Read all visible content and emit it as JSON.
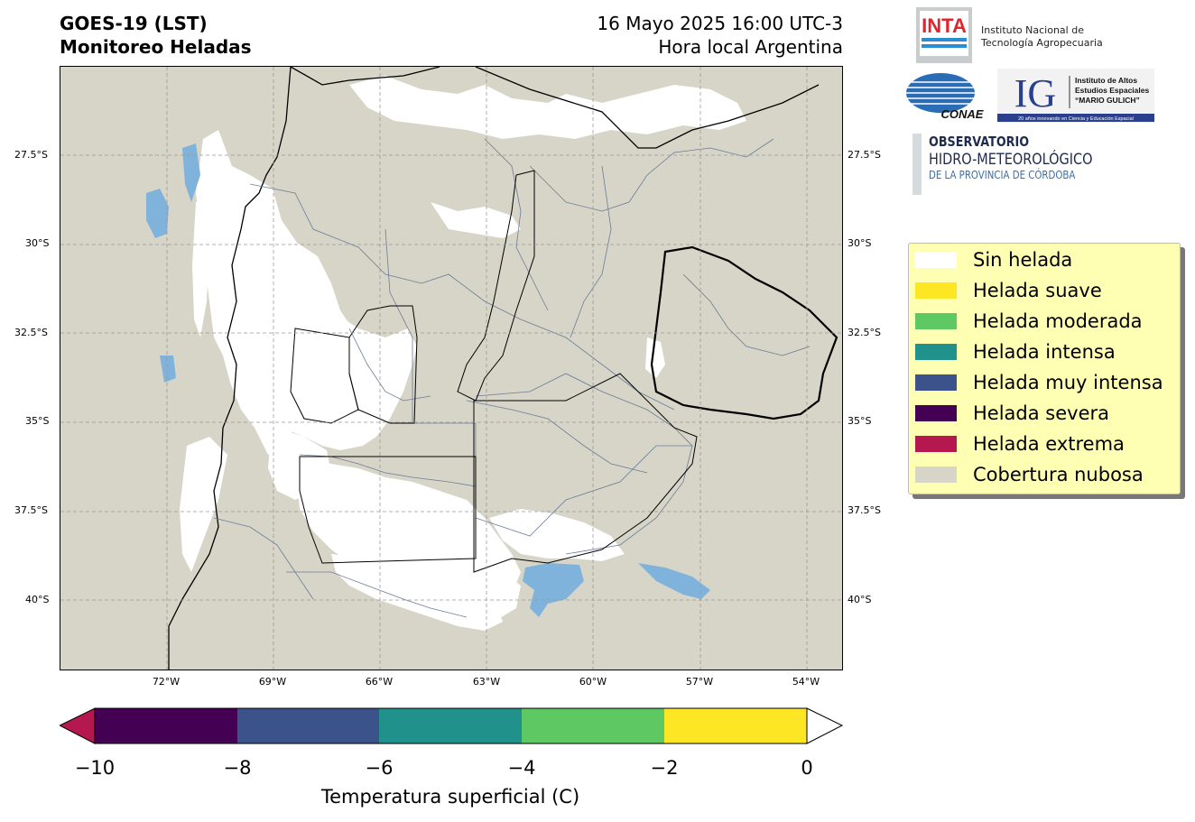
{
  "header": {
    "title_line1": "GOES-19 (LST)",
    "title_line2": "Monitoreo Heladas",
    "date_line1": "16 Mayo 2025 16:00 UTC-3",
    "date_line2": "Hora local Argentina"
  },
  "map": {
    "lat_labels": [
      "27.5°S",
      "30°S",
      "32.5°S",
      "35°S",
      "37.5°S",
      "40°S"
    ],
    "lon_labels": [
      "72°W",
      "69°W",
      "66°W",
      "63°W",
      "60°W",
      "57°W",
      "54°W"
    ],
    "cloud_color": "#d6d5c7",
    "clear_color": "#ffffff",
    "water_color": "#7fb3dc"
  },
  "logos": {
    "inta_mark": "INTA",
    "inta_line1": "Instituto Nacional de",
    "inta_line2": "Tecnología Agropecuaria",
    "conae": "CONAE",
    "ig_mark": "IG",
    "ig_line1": "Instituto de Altos",
    "ig_line2": "Estudios Espaciales",
    "ig_line3": "“MARIO GULICH”",
    "ig_tagline": "20 años innovando en Ciencia y Educación Espacial",
    "obs_line1": "OBSERVATORIO",
    "obs_line2": "HIDRO-METEOROLÓGICO",
    "obs_line3": "DE LA PROVINCIA DE CÓRDOBA"
  },
  "legend": {
    "items": [
      {
        "label": "Sin helada",
        "color": "#ffffff"
      },
      {
        "label": "Helada suave",
        "color": "#fde725"
      },
      {
        "label": "Helada moderada",
        "color": "#5ec962"
      },
      {
        "label": "Helada intensa",
        "color": "#21918c"
      },
      {
        "label": "Helada muy intensa",
        "color": "#3b528b"
      },
      {
        "label": "Helada severa",
        "color": "#440154"
      },
      {
        "label": "Helada extrema",
        "color": "#b5174f"
      },
      {
        "label": "Cobertura nubosa",
        "color": "#d6d5c7"
      }
    ]
  },
  "colorbar": {
    "ticks": [
      "−10",
      "−8",
      "−6",
      "−4",
      "−2",
      "0"
    ],
    "label": "Temperatura superficial (C)",
    "segments": [
      "#440154",
      "#3b528b",
      "#21918c",
      "#5ec962",
      "#fde725"
    ],
    "under_color": "#b5174f",
    "over_color": "#ffffff"
  }
}
